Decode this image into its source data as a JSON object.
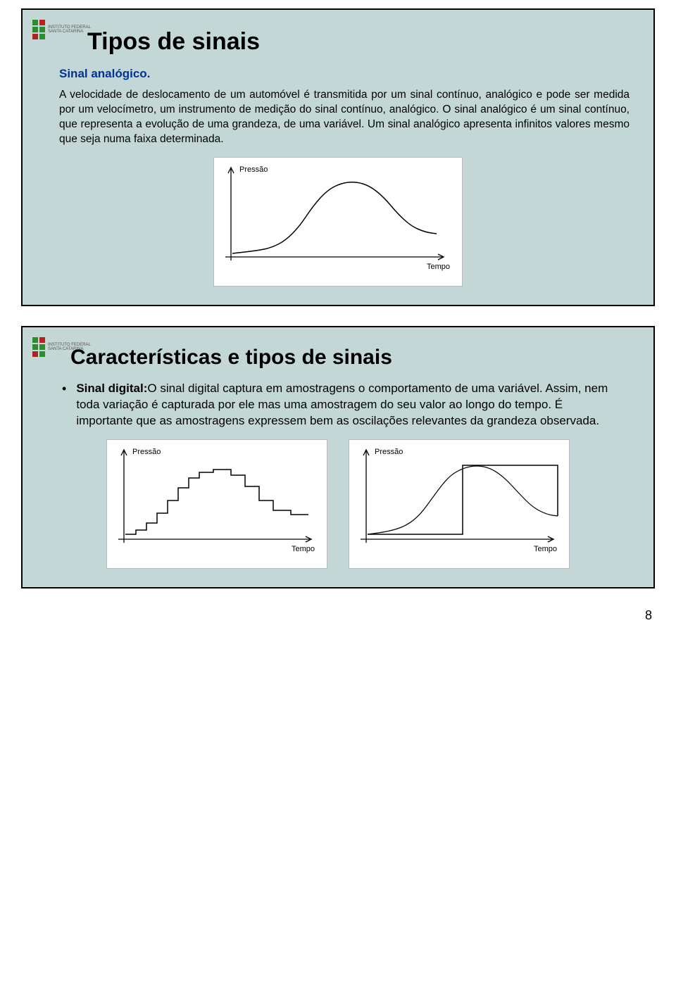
{
  "slide1": {
    "title": "Tipos de sinais",
    "subtitle": "Sinal analógico.",
    "paragraph_before_link": "A velocidade de deslocamento de um automóvel é transmitida por um sinal contínuo, analógico e pode ser medida por um velocímetro, um instrumento de medição do sinal contínuo, analógico. O sinal analógico é um sinal contínuo, que representa a evolução de uma grandeza, de uma variável. Um sinal analógico apresenta infinitos valores mesmo que seja numa faixa determinada.",
    "chart": {
      "type": "line",
      "y_label": "Pressão",
      "x_label": "Tempo",
      "background": "#ffffff",
      "axis_color": "#000000",
      "curve_color": "#000000",
      "curve_width": 1.5,
      "points": [
        [
          20,
          130
        ],
        [
          55,
          126
        ],
        [
          75,
          122
        ],
        [
          95,
          112
        ],
        [
          115,
          92
        ],
        [
          135,
          62
        ],
        [
          155,
          40
        ],
        [
          175,
          30
        ],
        [
          195,
          28
        ],
        [
          215,
          34
        ],
        [
          235,
          50
        ],
        [
          255,
          74
        ],
        [
          275,
          92
        ],
        [
          295,
          100
        ],
        [
          310,
          102
        ]
      ]
    }
  },
  "slide2": {
    "title": "Características e tipos de sinais",
    "bullet_lead": "Sinal digital:",
    "bullet_body": "O sinal digital captura em amostragens o comportamento de uma variável. Assim, nem toda variação é capturada por ele mas uma amostragem do seu valor ao longo do tempo. É importante que as amostragens expressem bem as oscilações relevantes da grandeza observada.",
    "chart_left": {
      "type": "step",
      "y_label": "Pressão",
      "x_label": "Tempo",
      "background": "#ffffff",
      "axis_color": "#000000",
      "curve_color": "#000000",
      "steps": [
        [
          20,
          128
        ],
        [
          35,
          128
        ],
        [
          35,
          122
        ],
        [
          50,
          122
        ],
        [
          50,
          112
        ],
        [
          65,
          112
        ],
        [
          65,
          98
        ],
        [
          80,
          98
        ],
        [
          80,
          80
        ],
        [
          95,
          80
        ],
        [
          95,
          62
        ],
        [
          110,
          62
        ],
        [
          110,
          48
        ],
        [
          125,
          48
        ],
        [
          125,
          40
        ],
        [
          145,
          40
        ],
        [
          145,
          36
        ],
        [
          170,
          36
        ],
        [
          170,
          44
        ],
        [
          190,
          44
        ],
        [
          190,
          60
        ],
        [
          210,
          60
        ],
        [
          210,
          80
        ],
        [
          230,
          80
        ],
        [
          230,
          94
        ],
        [
          255,
          94
        ],
        [
          255,
          100
        ],
        [
          280,
          100
        ]
      ]
    },
    "chart_right": {
      "type": "step-coarse",
      "y_label": "Pressão",
      "x_label": "Tempo",
      "background": "#ffffff",
      "axis_color": "#000000",
      "curve_color": "#000000",
      "smooth": [
        [
          20,
          128
        ],
        [
          50,
          124
        ],
        [
          75,
          116
        ],
        [
          95,
          100
        ],
        [
          115,
          72
        ],
        [
          135,
          46
        ],
        [
          155,
          34
        ],
        [
          175,
          30
        ],
        [
          195,
          34
        ],
        [
          215,
          48
        ],
        [
          235,
          70
        ],
        [
          255,
          90
        ],
        [
          275,
          100
        ],
        [
          290,
          102
        ]
      ],
      "step_overlay": [
        [
          20,
          128
        ],
        [
          155,
          128
        ],
        [
          155,
          30
        ],
        [
          290,
          30
        ],
        [
          290,
          102
        ]
      ]
    }
  },
  "page_number": "8",
  "colors": {
    "slide_bg": "#c3d7d7",
    "border": "#000000",
    "subtitle_blue": "#003399",
    "logo_red": "#b22222",
    "logo_green": "#2e8b2e"
  }
}
